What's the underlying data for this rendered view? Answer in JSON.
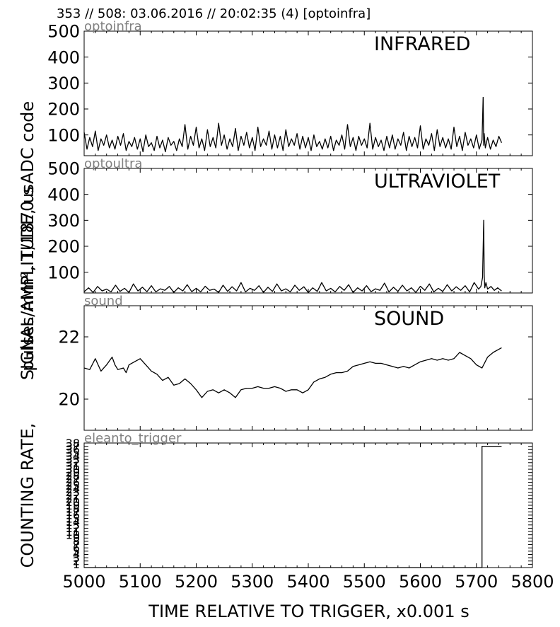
{
  "header": {
    "title": "353 // 508:   03.06.2016 // 20:02:35 (4)  [optoinfra]"
  },
  "xlabel": "TIME RELATIVE TO TRIGGER,   x0.001 s",
  "ylabel_lines": [
    "SIGNAL AMPLITUDE,   usADC code",
    "pulses/mm², 1/1870 s",
    "COUNTING RATE,"
  ],
  "colors": {
    "line": "#000000",
    "axis": "#000000",
    "panel_tag": "#808080"
  },
  "chart_data": [
    {
      "type": "line",
      "tag": "optoinfra",
      "title": "INFRARED",
      "xlim": [
        5000,
        5800
      ],
      "ylim": [
        20,
        500
      ],
      "yticks": [
        100,
        200,
        300,
        400,
        500
      ],
      "grid": false,
      "series": [
        {
          "x": [
            5000,
            5005,
            5010,
            5015,
            5020,
            5025,
            5030,
            5035,
            5040,
            5045,
            5050,
            5055,
            5060,
            5065,
            5070,
            5075,
            5080,
            5085,
            5090,
            5095,
            5100,
            5105,
            5110,
            5115,
            5120,
            5125,
            5130,
            5135,
            5140,
            5145,
            5150,
            5155,
            5160,
            5165,
            5170,
            5175,
            5180,
            5185,
            5190,
            5195,
            5200,
            5205,
            5210,
            5215,
            5220,
            5225,
            5230,
            5235,
            5240,
            5245,
            5250,
            5255,
            5260,
            5265,
            5270,
            5275,
            5280,
            5285,
            5290,
            5295,
            5300,
            5305,
            5310,
            5315,
            5320,
            5325,
            5330,
            5335,
            5340,
            5345,
            5350,
            5355,
            5360,
            5365,
            5370,
            5375,
            5380,
            5385,
            5390,
            5395,
            5400,
            5405,
            5410,
            5415,
            5420,
            5425,
            5430,
            5435,
            5440,
            5445,
            5450,
            5455,
            5460,
            5465,
            5470,
            5475,
            5480,
            5485,
            5490,
            5495,
            5500,
            5505,
            5510,
            5515,
            5520,
            5525,
            5530,
            5535,
            5540,
            5545,
            5550,
            5555,
            5560,
            5565,
            5570,
            5575,
            5580,
            5585,
            5590,
            5595,
            5600,
            5605,
            5610,
            5615,
            5620,
            5625,
            5630,
            5635,
            5640,
            5645,
            5650,
            5655,
            5660,
            5665,
            5670,
            5675,
            5680,
            5685,
            5690,
            5695,
            5700,
            5705,
            5710,
            5712,
            5713,
            5714,
            5716,
            5720,
            5725,
            5730,
            5735,
            5740,
            5745
          ],
          "y": [
            110,
            45,
            90,
            55,
            115,
            40,
            85,
            60,
            100,
            50,
            80,
            45,
            95,
            60,
            105,
            40,
            75,
            55,
            90,
            45,
            85,
            35,
            100,
            55,
            70,
            40,
            95,
            50,
            80,
            35,
            90,
            60,
            75,
            40,
            85,
            55,
            140,
            45,
            95,
            60,
            130,
            50,
            85,
            40,
            120,
            55,
            90,
            50,
            145,
            60,
            100,
            45,
            85,
            55,
            125,
            40,
            95,
            60,
            110,
            50,
            90,
            40,
            130,
            55,
            85,
            60,
            115,
            45,
            100,
            50,
            95,
            40,
            120,
            55,
            85,
            60,
            105,
            45,
            95,
            50,
            90,
            40,
            100,
            55,
            75,
            45,
            85,
            50,
            95,
            40,
            80,
            60,
            100,
            45,
            140,
            55,
            90,
            40,
            95,
            60,
            85,
            50,
            145,
            45,
            90,
            55,
            80,
            40,
            95,
            50,
            100,
            45,
            85,
            60,
            110,
            40,
            95,
            55,
            90,
            50,
            135,
            45,
            85,
            60,
            105,
            40,
            120,
            55,
            90,
            50,
            85,
            45,
            130,
            55,
            95,
            40,
            110,
            60,
            85,
            50,
            100,
            45,
            80,
            245,
            60,
            105,
            50,
            90,
            45,
            80,
            55,
            95,
            70
          ]
        }
      ]
    },
    {
      "type": "line",
      "tag": "optoultra",
      "title": "ULTRAVIOLET",
      "xlim": [
        5000,
        5800
      ],
      "ylim": [
        20,
        500
      ],
      "yticks": [
        100,
        200,
        300,
        400,
        500
      ],
      "grid": false,
      "series": [
        {
          "x": [
            5000,
            5008,
            5016,
            5024,
            5032,
            5040,
            5048,
            5056,
            5064,
            5072,
            5080,
            5088,
            5096,
            5104,
            5112,
            5120,
            5128,
            5136,
            5144,
            5152,
            5160,
            5168,
            5176,
            5184,
            5192,
            5200,
            5208,
            5216,
            5224,
            5232,
            5240,
            5248,
            5256,
            5264,
            5272,
            5280,
            5288,
            5296,
            5304,
            5312,
            5320,
            5328,
            5336,
            5344,
            5352,
            5360,
            5368,
            5376,
            5384,
            5392,
            5400,
            5408,
            5416,
            5424,
            5432,
            5440,
            5448,
            5456,
            5464,
            5472,
            5480,
            5488,
            5496,
            5504,
            5512,
            5520,
            5528,
            5536,
            5544,
            5552,
            5560,
            5568,
            5576,
            5584,
            5592,
            5600,
            5608,
            5616,
            5624,
            5632,
            5640,
            5648,
            5656,
            5664,
            5672,
            5680,
            5688,
            5696,
            5704,
            5708,
            5711,
            5713,
            5714,
            5715,
            5717,
            5720,
            5726,
            5732,
            5738,
            5745
          ],
          "y": [
            25,
            40,
            22,
            45,
            28,
            35,
            24,
            50,
            26,
            38,
            22,
            55,
            28,
            42,
            25,
            48,
            24,
            36,
            30,
            45,
            22,
            40,
            28,
            52,
            25,
            38,
            24,
            46,
            30,
            35,
            22,
            50,
            26,
            44,
            28,
            60,
            24,
            38,
            30,
            48,
            22,
            42,
            26,
            55,
            28,
            36,
            24,
            50,
            30,
            44,
            22,
            40,
            26,
            60,
            28,
            38,
            24,
            45,
            30,
            52,
            22,
            40,
            28,
            48,
            25,
            36,
            30,
            58,
            24,
            42,
            26,
            50,
            28,
            40,
            22,
            46,
            30,
            55,
            24,
            38,
            26,
            52,
            28,
            44,
            30,
            48,
            24,
            60,
            35,
            45,
            80,
            300,
            90,
            40,
            60,
            35,
            45,
            30,
            40,
            28
          ]
        }
      ]
    },
    {
      "type": "line",
      "tag": "sound",
      "title": "SOUND",
      "xlim": [
        5000,
        5800
      ],
      "ylim": [
        19.0,
        23.0
      ],
      "yticks": [
        20,
        22
      ],
      "grid": false,
      "series": [
        {
          "x": [
            5000,
            5010,
            5020,
            5025,
            5030,
            5040,
            5050,
            5055,
            5060,
            5070,
            5075,
            5080,
            5090,
            5100,
            5110,
            5120,
            5130,
            5140,
            5150,
            5160,
            5170,
            5180,
            5190,
            5200,
            5210,
            5220,
            5230,
            5240,
            5250,
            5260,
            5270,
            5280,
            5290,
            5300,
            5310,
            5320,
            5330,
            5340,
            5350,
            5360,
            5370,
            5380,
            5390,
            5400,
            5410,
            5420,
            5430,
            5440,
            5450,
            5460,
            5470,
            5480,
            5490,
            5500,
            5510,
            5520,
            5530,
            5540,
            5550,
            5560,
            5570,
            5580,
            5590,
            5600,
            5610,
            5620,
            5630,
            5640,
            5650,
            5660,
            5670,
            5680,
            5690,
            5700,
            5710,
            5720,
            5730,
            5740,
            5745
          ],
          "y": [
            21.0,
            20.95,
            21.3,
            21.1,
            20.9,
            21.1,
            21.35,
            21.1,
            20.95,
            21.0,
            20.85,
            21.1,
            21.2,
            21.3,
            21.1,
            20.9,
            20.8,
            20.6,
            20.7,
            20.45,
            20.5,
            20.65,
            20.5,
            20.3,
            20.05,
            20.25,
            20.3,
            20.2,
            20.3,
            20.2,
            20.05,
            20.3,
            20.35,
            20.35,
            20.4,
            20.35,
            20.35,
            20.4,
            20.35,
            20.25,
            20.3,
            20.3,
            20.2,
            20.3,
            20.55,
            20.65,
            20.7,
            20.8,
            20.85,
            20.85,
            20.9,
            21.05,
            21.1,
            21.15,
            21.2,
            21.15,
            21.15,
            21.1,
            21.05,
            21.0,
            21.05,
            21.0,
            21.1,
            21.2,
            21.25,
            21.3,
            21.25,
            21.3,
            21.25,
            21.3,
            21.5,
            21.4,
            21.3,
            21.1,
            21.0,
            21.35,
            21.5,
            21.6,
            21.65
          ]
        }
      ]
    },
    {
      "type": "line",
      "tag": "eleanto_trigger",
      "xlim": [
        5000,
        5800
      ],
      "ylim": [
        0,
        38
      ],
      "yticks": [
        1,
        2,
        3,
        4,
        5,
        6,
        7,
        8,
        9,
        10,
        11,
        12,
        13,
        14,
        15,
        16,
        17,
        18,
        19,
        20,
        21,
        22,
        23,
        24,
        25,
        26,
        27,
        28,
        29,
        30,
        31,
        32,
        33,
        34,
        35,
        36,
        37,
        38
      ],
      "grid": false,
      "series": [
        {
          "x": [
            5000,
            5710,
            5710,
            5745
          ],
          "y": [
            0,
            0,
            37,
            37
          ]
        }
      ]
    }
  ]
}
